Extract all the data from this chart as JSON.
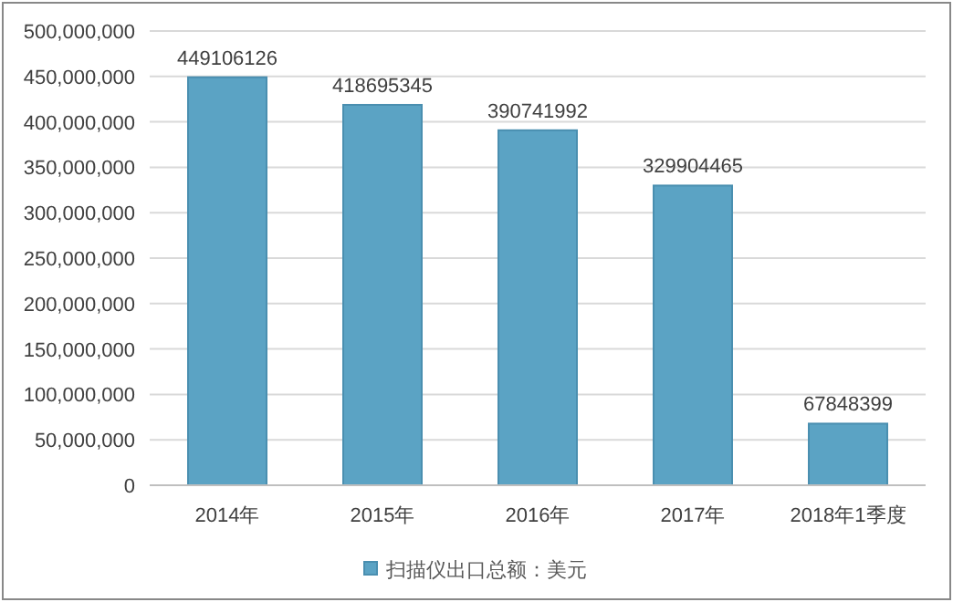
{
  "chart_data": {
    "type": "bar",
    "categories": [
      "2014年",
      "2015年",
      "2016年",
      "2017年",
      "2018年1季度"
    ],
    "series": [
      {
        "name": "扫描仪出口总额：美元",
        "color": "#5ba3c4",
        "values": [
          449106126,
          418695345,
          390741992,
          329904465,
          67848399
        ]
      }
    ],
    "ylim": [
      0,
      500000000
    ],
    "yticks": [
      0,
      {
        "value": 50000000,
        "label": "50,000,000"
      },
      {
        "value": 100000000,
        "label": "100,000,000"
      },
      {
        "value": 150000000,
        "label": "150,000,000"
      },
      {
        "value": 200000000,
        "label": "200,000,000"
      },
      {
        "value": 250000000,
        "label": "250,000,000"
      },
      {
        "value": 300000000,
        "label": "300,000,000"
      },
      {
        "value": 350000000,
        "label": "350,000,000"
      },
      {
        "value": 400000000,
        "label": "400,000,000"
      },
      {
        "value": 450000000,
        "label": "450,000,000"
      },
      {
        "value": 500000000,
        "label": "500,000,000"
      }
    ],
    "grid": "y",
    "legend": "bottom",
    "data_labels": true
  }
}
